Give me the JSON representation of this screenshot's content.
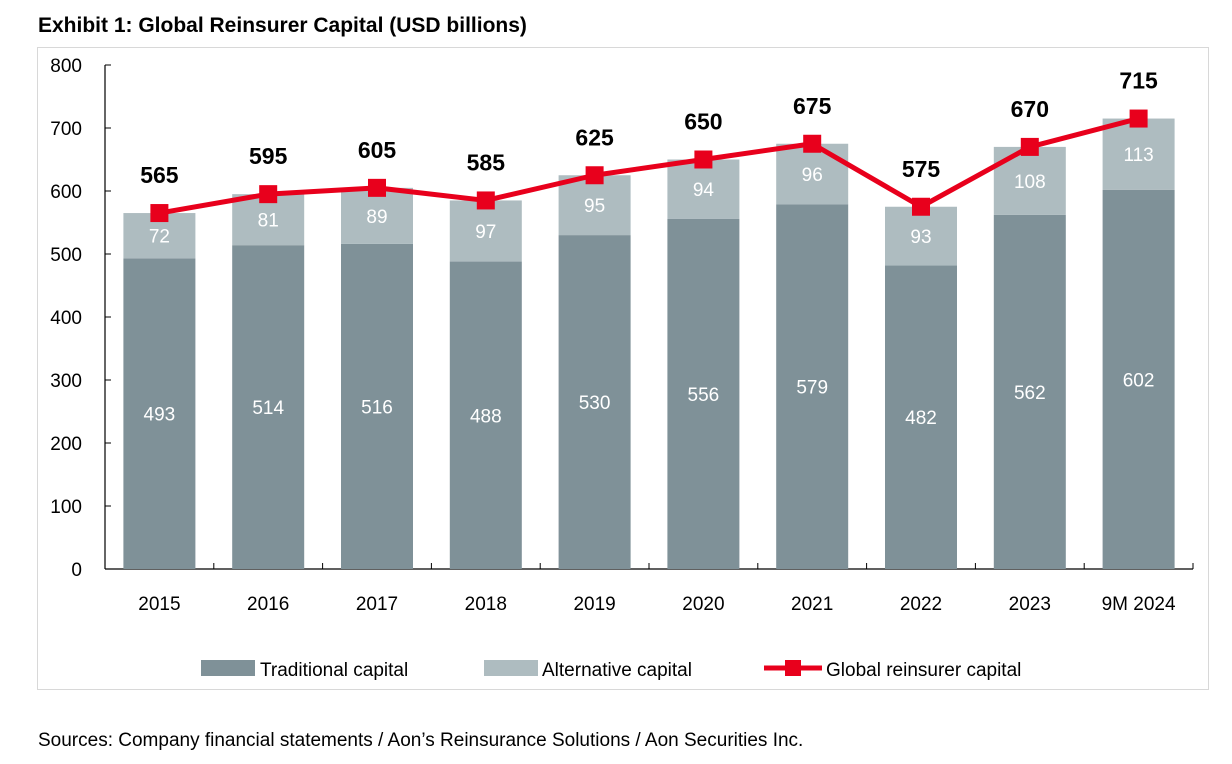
{
  "chart_data": {
    "type": "bar",
    "stacked": true,
    "title": "Exhibit 1: Global Reinsurer Capital (USD billions)",
    "categories": [
      "2015",
      "2016",
      "2017",
      "2018",
      "2019",
      "2020",
      "2021",
      "2022",
      "2023",
      "9M 2024"
    ],
    "series": [
      {
        "name": "Traditional capital",
        "type": "bar",
        "color": "#7f9198",
        "values": [
          493,
          514,
          516,
          488,
          530,
          556,
          579,
          482,
          562,
          602
        ]
      },
      {
        "name": "Alternative capital",
        "type": "bar",
        "color": "#aebcc0",
        "values": [
          72,
          81,
          89,
          97,
          95,
          94,
          96,
          93,
          108,
          113
        ]
      },
      {
        "name": "Global reinsurer capital",
        "type": "line",
        "color": "#e8001c",
        "values": [
          565,
          595,
          605,
          585,
          625,
          650,
          675,
          575,
          670,
          715
        ]
      }
    ],
    "ylim": [
      0,
      800
    ],
    "yticks": [
      0,
      100,
      200,
      300,
      400,
      500,
      600,
      700,
      800
    ],
    "grid": false,
    "legend": "bottom"
  },
  "source": "Sources: Company financial statements / Aon’s Reinsurance Solutions / Aon Securities Inc."
}
